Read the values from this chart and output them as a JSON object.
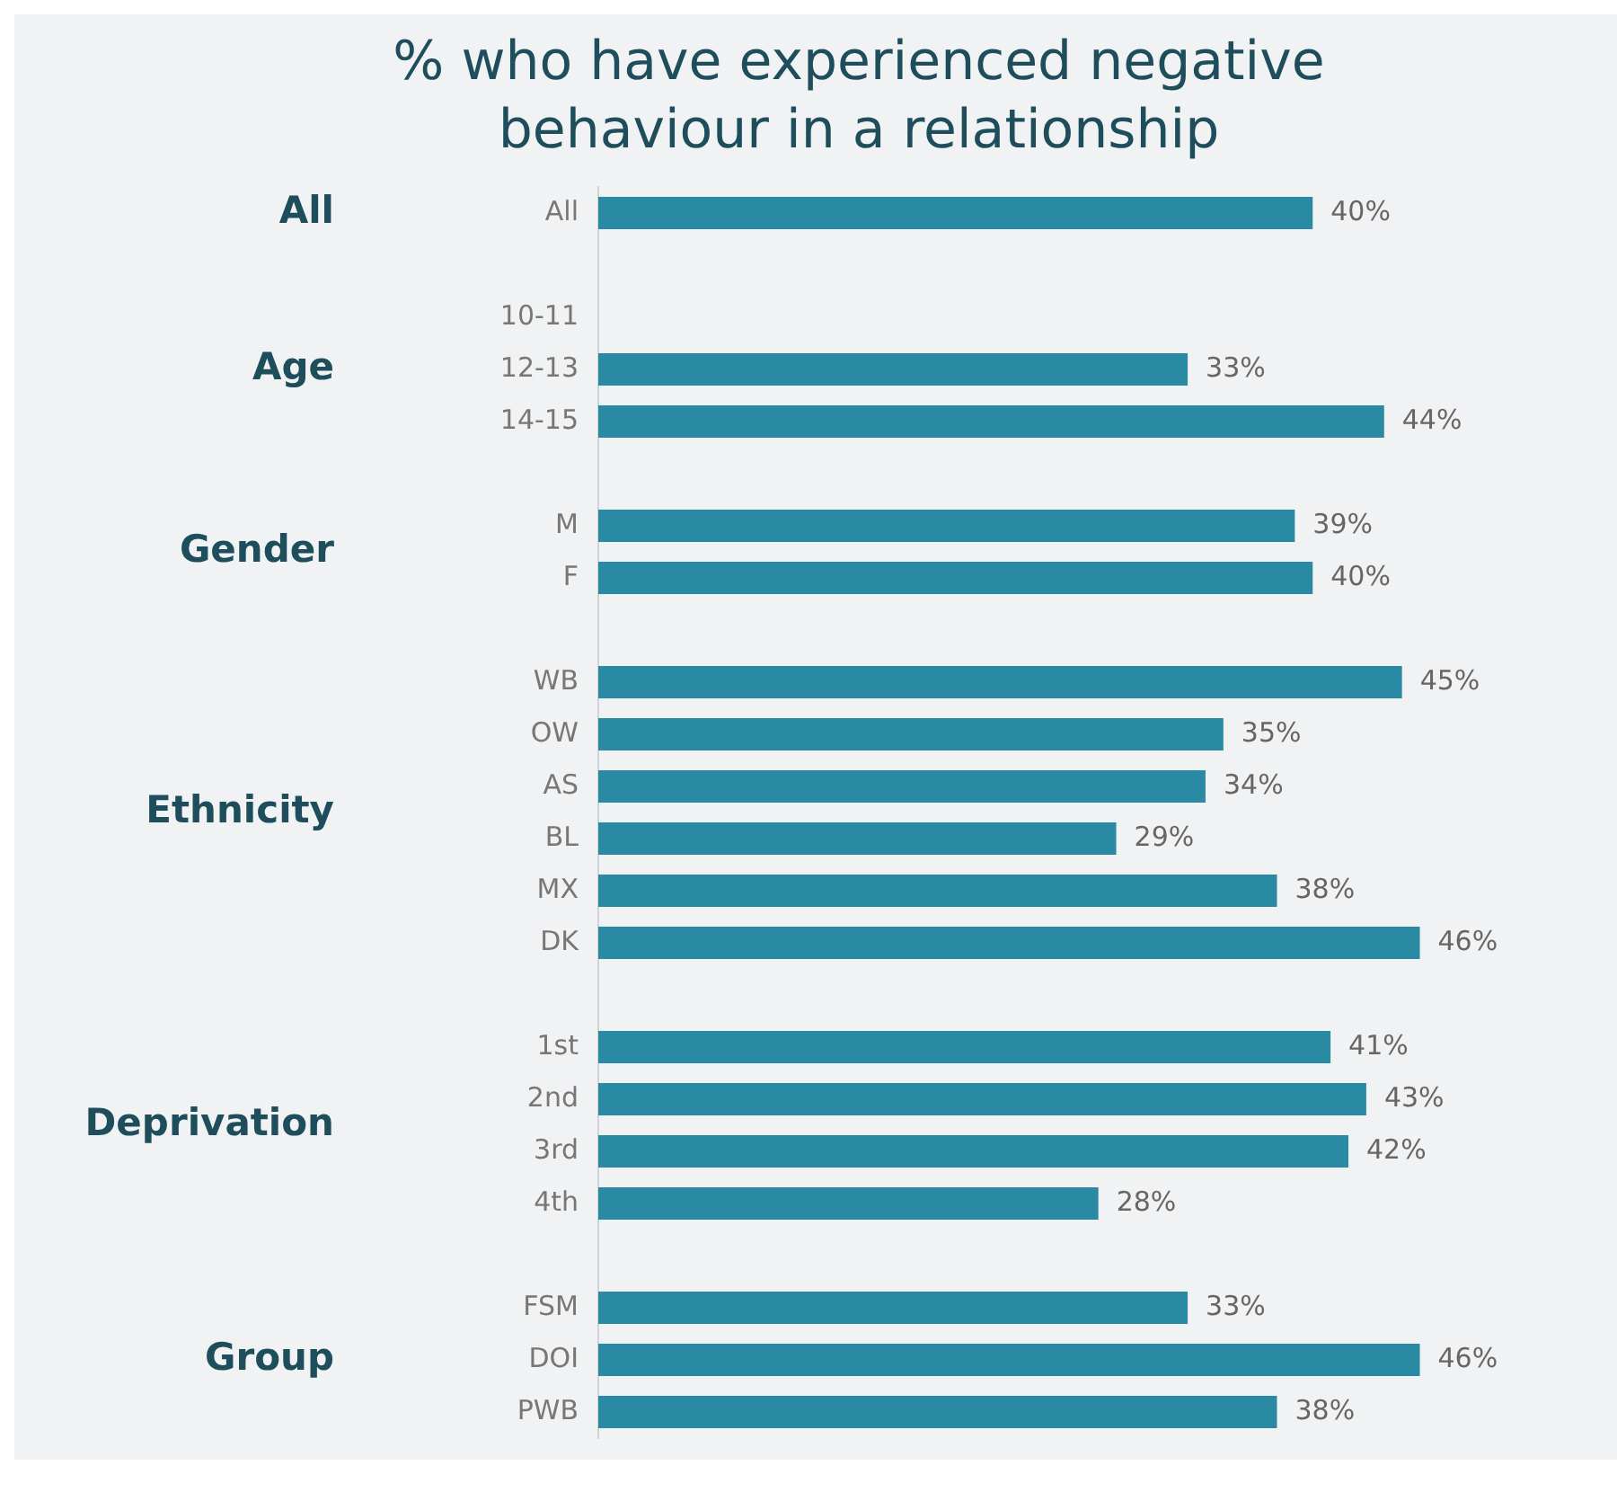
{
  "chart_data": {
    "type": "bar",
    "orientation": "horizontal",
    "title": "% who have experienced negative behaviour in a relationship",
    "categories": [
      "All",
      null,
      "10-11",
      "12-13",
      "14-15",
      null,
      "M",
      "F",
      null,
      "WB",
      "OW",
      "AS",
      "BL",
      "MX",
      "DK",
      null,
      "1st",
      "2nd",
      "3rd",
      "4th",
      null,
      "FSM",
      "DOI",
      "PWB"
    ],
    "values": [
      40,
      null,
      null,
      33,
      44,
      null,
      39,
      40,
      null,
      45,
      35,
      34,
      29,
      38,
      46,
      null,
      41,
      43,
      42,
      28,
      null,
      33,
      46,
      38
    ],
    "value_labels": [
      "40%",
      null,
      null,
      "33%",
      "44%",
      null,
      "39%",
      "40%",
      null,
      "45%",
      "35%",
      "34%",
      "29%",
      "38%",
      "46%",
      null,
      "41%",
      "43%",
      "42%",
      "28%",
      null,
      "33%",
      "46%",
      "38%"
    ],
    "color": "#2b8aa3",
    "annotations": [
      "All",
      "Age",
      "Gender",
      "Ethnicity",
      "Deprivation",
      "Group"
    ],
    "grid": false,
    "legend": false
  }
}
